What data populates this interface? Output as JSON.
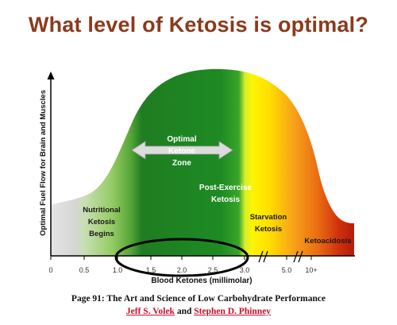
{
  "title": "What level of Ketosis is optimal?",
  "y_axis_label": "Optimal Fuel Flow for Brain and Muscles",
  "x_axis_label": "Blood Ketones (millimolar)",
  "x_ticks": [
    "0",
    "0.5",
    "1.0",
    "1.5",
    "2.0",
    "2.5",
    "3.0",
    "5.0",
    "10+"
  ],
  "zones": {
    "nutritional": [
      "Nutritional",
      "Ketosis",
      "Begins"
    ],
    "optimal": [
      "Optimal",
      "Ketone",
      "Zone"
    ],
    "post_exercise": [
      "Post-Exercise",
      "Ketosis"
    ],
    "starvation": [
      "Starvation",
      "Ketosis"
    ],
    "ketoacidosis": "Ketoacidosis"
  },
  "colors": {
    "title": "#8b3a1c",
    "grey_zone": "#d9d9d9",
    "green_light": "#8fc960",
    "green_dark": "#1e7f24",
    "yellow": "#fff200",
    "orange": "#f39c1c",
    "red": "#c8200e",
    "author_link": "#c8102e"
  },
  "citation": {
    "source": "Page 91: The Art and Science of Low Carbohydrate Performance",
    "author1": "Jeff S. Volek",
    "and": "and",
    "author2": "Stephen D. Phinney"
  }
}
